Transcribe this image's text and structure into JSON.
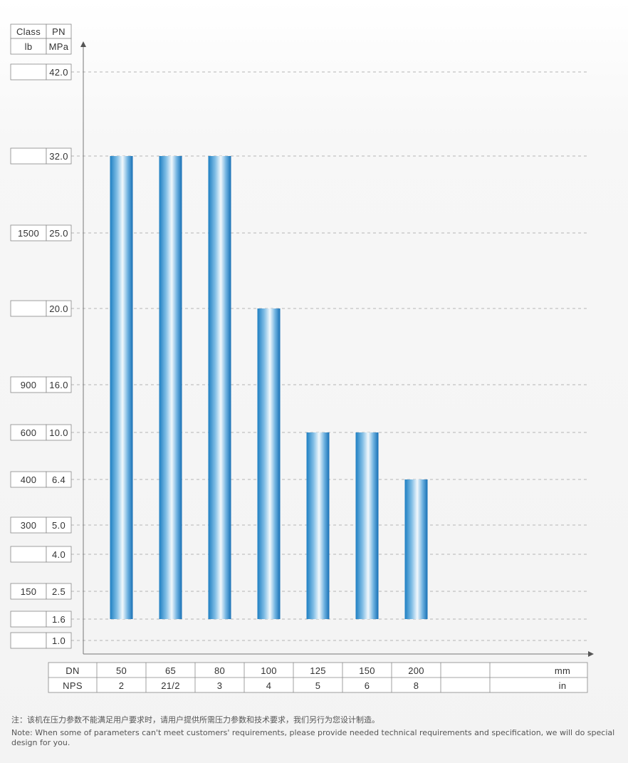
{
  "chart_data": {
    "type": "bar",
    "y_header": {
      "class_label": "Class",
      "pn_label": "PN",
      "class_unit": "lb",
      "pn_unit": "MPa"
    },
    "y_levels": [
      {
        "pn": "42.0",
        "cls": ""
      },
      {
        "pn": "32.0",
        "cls": ""
      },
      {
        "pn": "25.0",
        "cls": "1500"
      },
      {
        "pn": "20.0",
        "cls": ""
      },
      {
        "pn": "16.0",
        "cls": "900"
      },
      {
        "pn": "10.0",
        "cls": "600"
      },
      {
        "pn": "6.4",
        "cls": "400"
      },
      {
        "pn": "5.0",
        "cls": "300"
      },
      {
        "pn": "4.0",
        "cls": ""
      },
      {
        "pn": "2.5",
        "cls": "150"
      },
      {
        "pn": "1.6",
        "cls": ""
      },
      {
        "pn": "1.0",
        "cls": ""
      }
    ],
    "x_header": {
      "dn_label": "DN",
      "nps_label": "NPS",
      "dn_unit": "mm",
      "nps_unit": "in"
    },
    "categories": [
      "50",
      "65",
      "80",
      "100",
      "125",
      "150",
      "200"
    ],
    "nps": [
      "2",
      "21/2",
      "3",
      "4",
      "5",
      "6",
      "8"
    ],
    "values": [
      "32.0",
      "32.0",
      "32.0",
      "20.0",
      "10.0",
      "10.0",
      "6.4"
    ],
    "base": "1.6",
    "bar_color": "#1e7fc2",
    "grid_color": "#b5b5b5",
    "grid": true
  },
  "note": {
    "zh": "注：该机在压力参数不能满足用户要求时，请用户提供所需压力参数和技术要求，我们另行为您设计制造。",
    "en": "Note: When some of parameters can't meet customers' requirements, please provide needed technical requirements and specification, we will do special design for you."
  }
}
